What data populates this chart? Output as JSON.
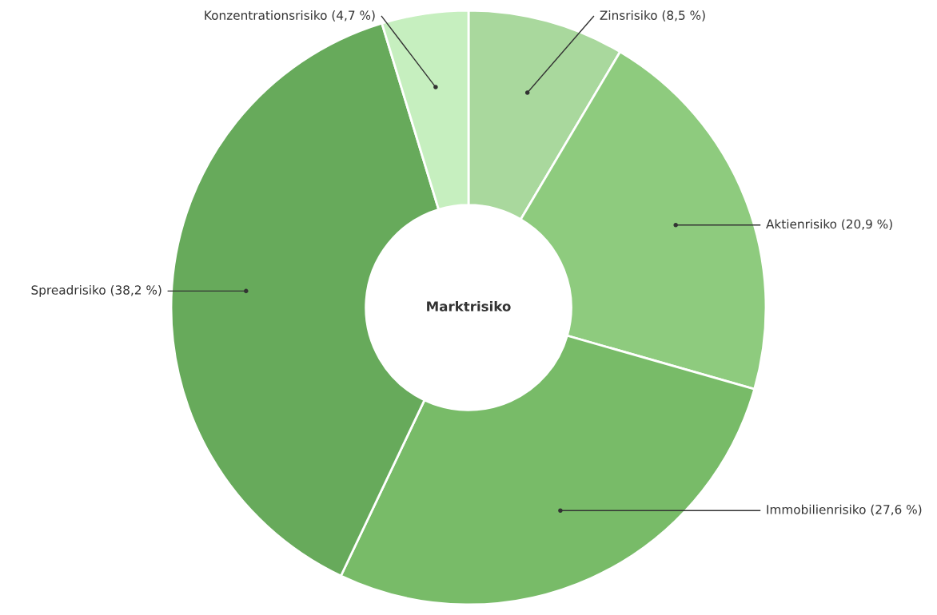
{
  "chart_data": {
    "type": "donut",
    "title": "Marktrisiko",
    "categories": [
      "Zinsrisiko",
      "Aktienrisiko",
      "Immobilienrisiko",
      "Spreadrisiko",
      "Konzentrationsrisiko"
    ],
    "values": [
      8.5,
      20.9,
      27.6,
      38.2,
      4.7
    ],
    "value_labels": [
      "(8,5 %)",
      "(20,9 %)",
      "(27,6 %)",
      "(38,2 %)",
      "(4,7 %)"
    ],
    "colors": [
      "#a9d89d",
      "#8ecb7e",
      "#78bb68",
      "#67aa5b",
      "#c6efbf"
    ],
    "legend": false
  }
}
